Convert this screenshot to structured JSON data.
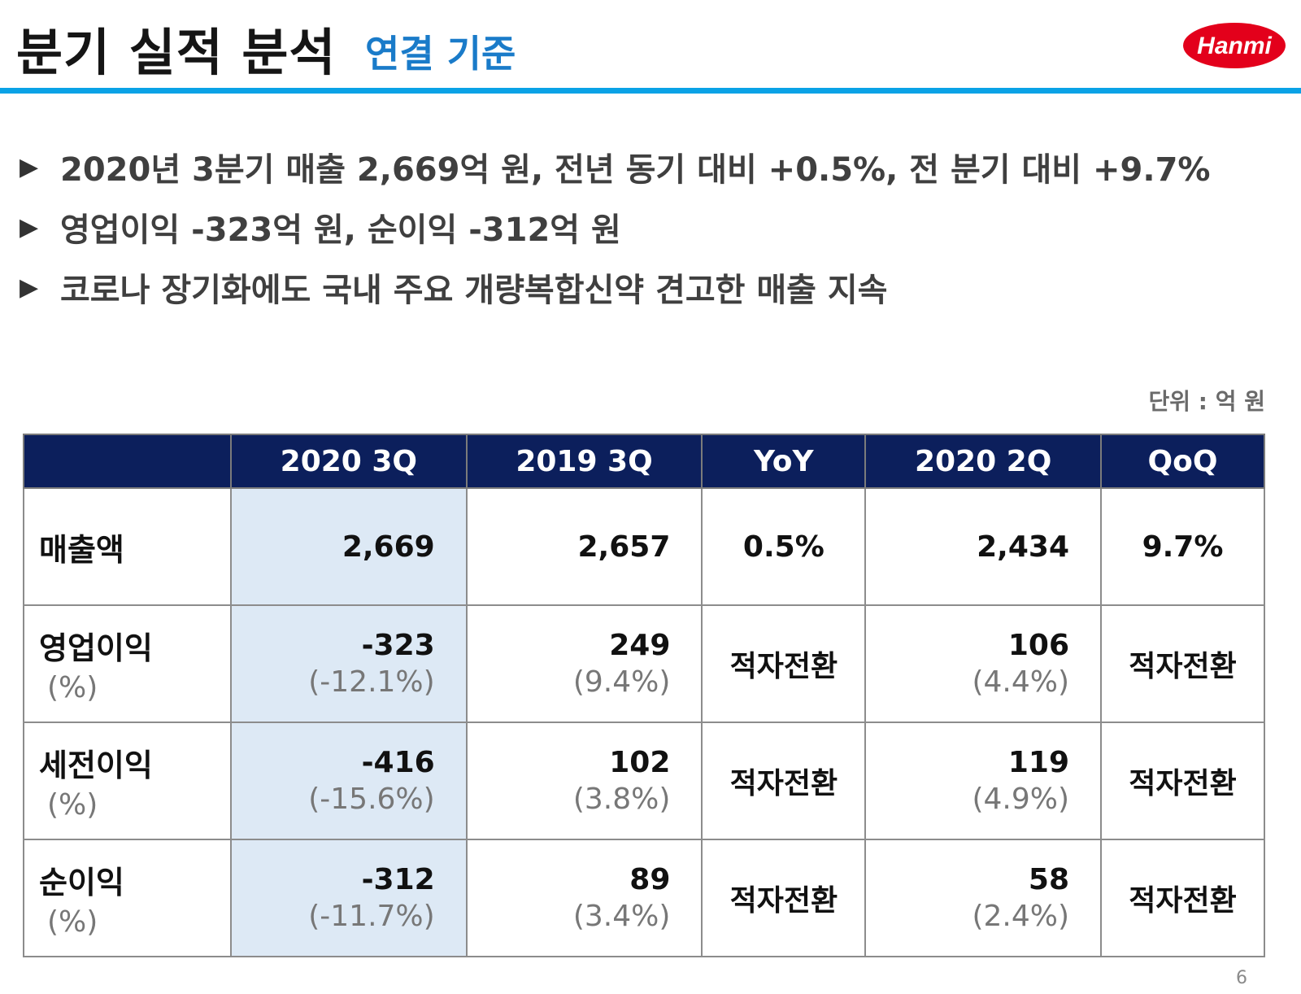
{
  "header": {
    "title": "분기 실적 분석",
    "subtitle": "연결 기준",
    "logo_text": "Hanmi",
    "accent_color": "#0aa2e6",
    "subtitle_color": "#1a7bc9",
    "logo_color": "#e3001b"
  },
  "bullets": [
    "2020년 3분기 매출 2,669억 원, 전년 동기 대비 +0.5%, 전 분기 대비 +9.7%",
    "영업이익 -323억 원, 순이익 -312억 원",
    "코로나 장기화에도 국내 주요 개량복합신약 견고한 매출 지속"
  ],
  "bullet_marker": "▶",
  "unit_note": "단위 : 억 원",
  "table": {
    "header_color": "#0c1f5c",
    "highlight_color": "#dde9f5",
    "columns": [
      "",
      "2020 3Q",
      "2019 3Q",
      "YoY",
      "2020 2Q",
      "QoQ"
    ],
    "rows": [
      {
        "label": "매출액",
        "label_sub": "",
        "q3_2020": "2,669",
        "q3_2020_pct": "",
        "q3_2019": "2,657",
        "q3_2019_pct": "",
        "yoy": "0.5%",
        "q2_2020": "2,434",
        "q2_2020_pct": "",
        "qoq": "9.7%"
      },
      {
        "label": "영업이익",
        "label_sub": "(%)",
        "q3_2020": "-323",
        "q3_2020_pct": "(-12.1%)",
        "q3_2019": "249",
        "q3_2019_pct": "(9.4%)",
        "yoy": "적자전환",
        "q2_2020": "106",
        "q2_2020_pct": "(4.4%)",
        "qoq": "적자전환"
      },
      {
        "label": "세전이익",
        "label_sub": "(%)",
        "q3_2020": "-416",
        "q3_2020_pct": "(-15.6%)",
        "q3_2019": "102",
        "q3_2019_pct": "(3.8%)",
        "yoy": "적자전환",
        "q2_2020": "119",
        "q2_2020_pct": "(4.9%)",
        "qoq": "적자전환"
      },
      {
        "label": "순이익",
        "label_sub": "(%)",
        "q3_2020": "-312",
        "q3_2020_pct": "(-11.7%)",
        "q3_2019": "89",
        "q3_2019_pct": "(3.4%)",
        "yoy": "적자전환",
        "q2_2020": "58",
        "q2_2020_pct": "(2.4%)",
        "qoq": "적자전환"
      }
    ]
  },
  "page_number": "6"
}
